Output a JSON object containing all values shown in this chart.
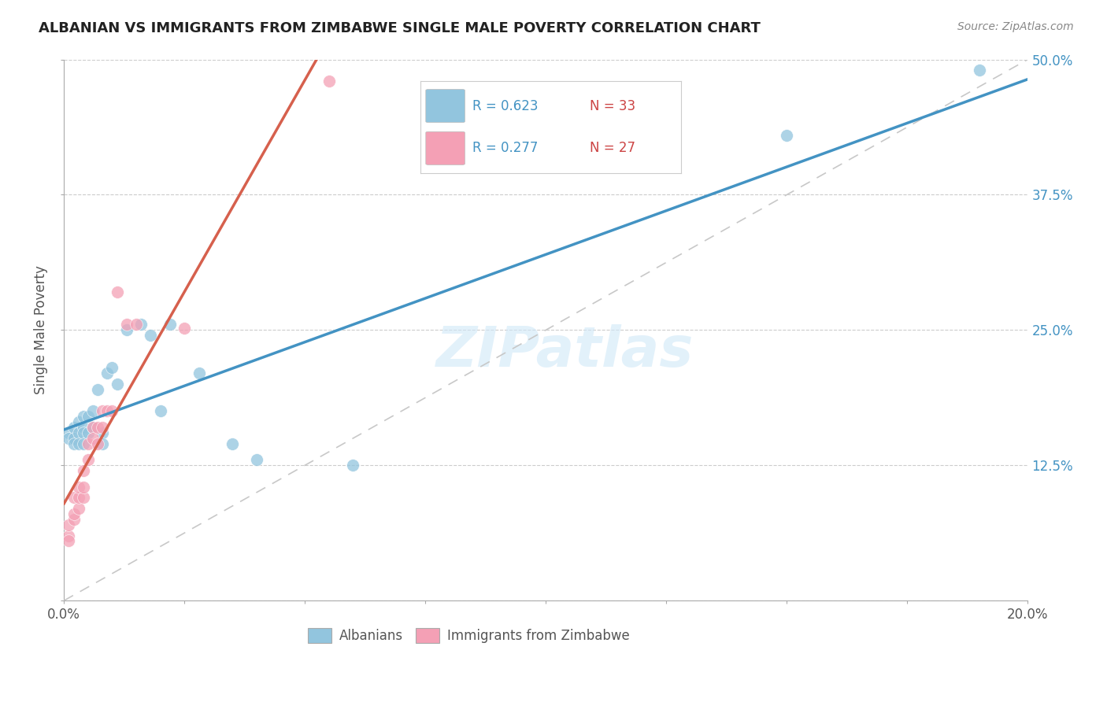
{
  "title": "ALBANIAN VS IMMIGRANTS FROM ZIMBABWE SINGLE MALE POVERTY CORRELATION CHART",
  "source": "Source: ZipAtlas.com",
  "xlim": [
    0.0,
    0.2
  ],
  "ylim": [
    0.0,
    0.5
  ],
  "legend_label1": "Albanians",
  "legend_label2": "Immigrants from Zimbabwe",
  "R1": 0.623,
  "N1": 33,
  "R2": 0.277,
  "N2": 27,
  "color1": "#92c5de",
  "color2": "#f4a0b5",
  "line_color1": "#4393c3",
  "line_color2": "#d6604d",
  "dashed_pink_color": "#f4b8c8",
  "dashed_gray_color": "#c8c8c8",
  "watermark_color": "#ddeeff",
  "watermark": "ZIPatlas",
  "albanians_x": [
    0.001,
    0.001,
    0.002,
    0.002,
    0.002,
    0.003,
    0.003,
    0.003,
    0.004,
    0.004,
    0.004,
    0.004,
    0.005,
    0.005,
    0.006,
    0.006,
    0.007,
    0.008,
    0.008,
    0.009,
    0.01,
    0.011,
    0.013,
    0.016,
    0.018,
    0.02,
    0.022,
    0.028,
    0.035,
    0.04,
    0.06,
    0.15,
    0.19
  ],
  "albanians_y": [
    0.155,
    0.15,
    0.16,
    0.15,
    0.145,
    0.165,
    0.155,
    0.145,
    0.17,
    0.16,
    0.155,
    0.145,
    0.17,
    0.155,
    0.175,
    0.16,
    0.195,
    0.155,
    0.145,
    0.21,
    0.215,
    0.2,
    0.25,
    0.255,
    0.245,
    0.175,
    0.255,
    0.21,
    0.145,
    0.13,
    0.125,
    0.43,
    0.49
  ],
  "zimbabwe_x": [
    0.001,
    0.001,
    0.001,
    0.002,
    0.002,
    0.002,
    0.003,
    0.003,
    0.003,
    0.004,
    0.004,
    0.004,
    0.005,
    0.005,
    0.006,
    0.006,
    0.007,
    0.007,
    0.008,
    0.008,
    0.009,
    0.01,
    0.011,
    0.013,
    0.015,
    0.025,
    0.055
  ],
  "zimbabwe_y": [
    0.06,
    0.07,
    0.055,
    0.075,
    0.08,
    0.095,
    0.085,
    0.095,
    0.105,
    0.095,
    0.105,
    0.12,
    0.13,
    0.145,
    0.16,
    0.15,
    0.16,
    0.145,
    0.16,
    0.175,
    0.175,
    0.175,
    0.285,
    0.255,
    0.255,
    0.252,
    0.48
  ],
  "x_ticks": [
    0.0,
    0.025,
    0.05,
    0.075,
    0.1,
    0.125,
    0.15,
    0.175,
    0.2
  ],
  "y_ticks": [
    0.0,
    0.125,
    0.25,
    0.375,
    0.5
  ],
  "x_tick_labels_show": {
    "0.0": "0.0%",
    "0.20": "20.0%"
  },
  "y_tick_labels": [
    "",
    "12.5%",
    "25.0%",
    "37.5%",
    "50.0%"
  ]
}
